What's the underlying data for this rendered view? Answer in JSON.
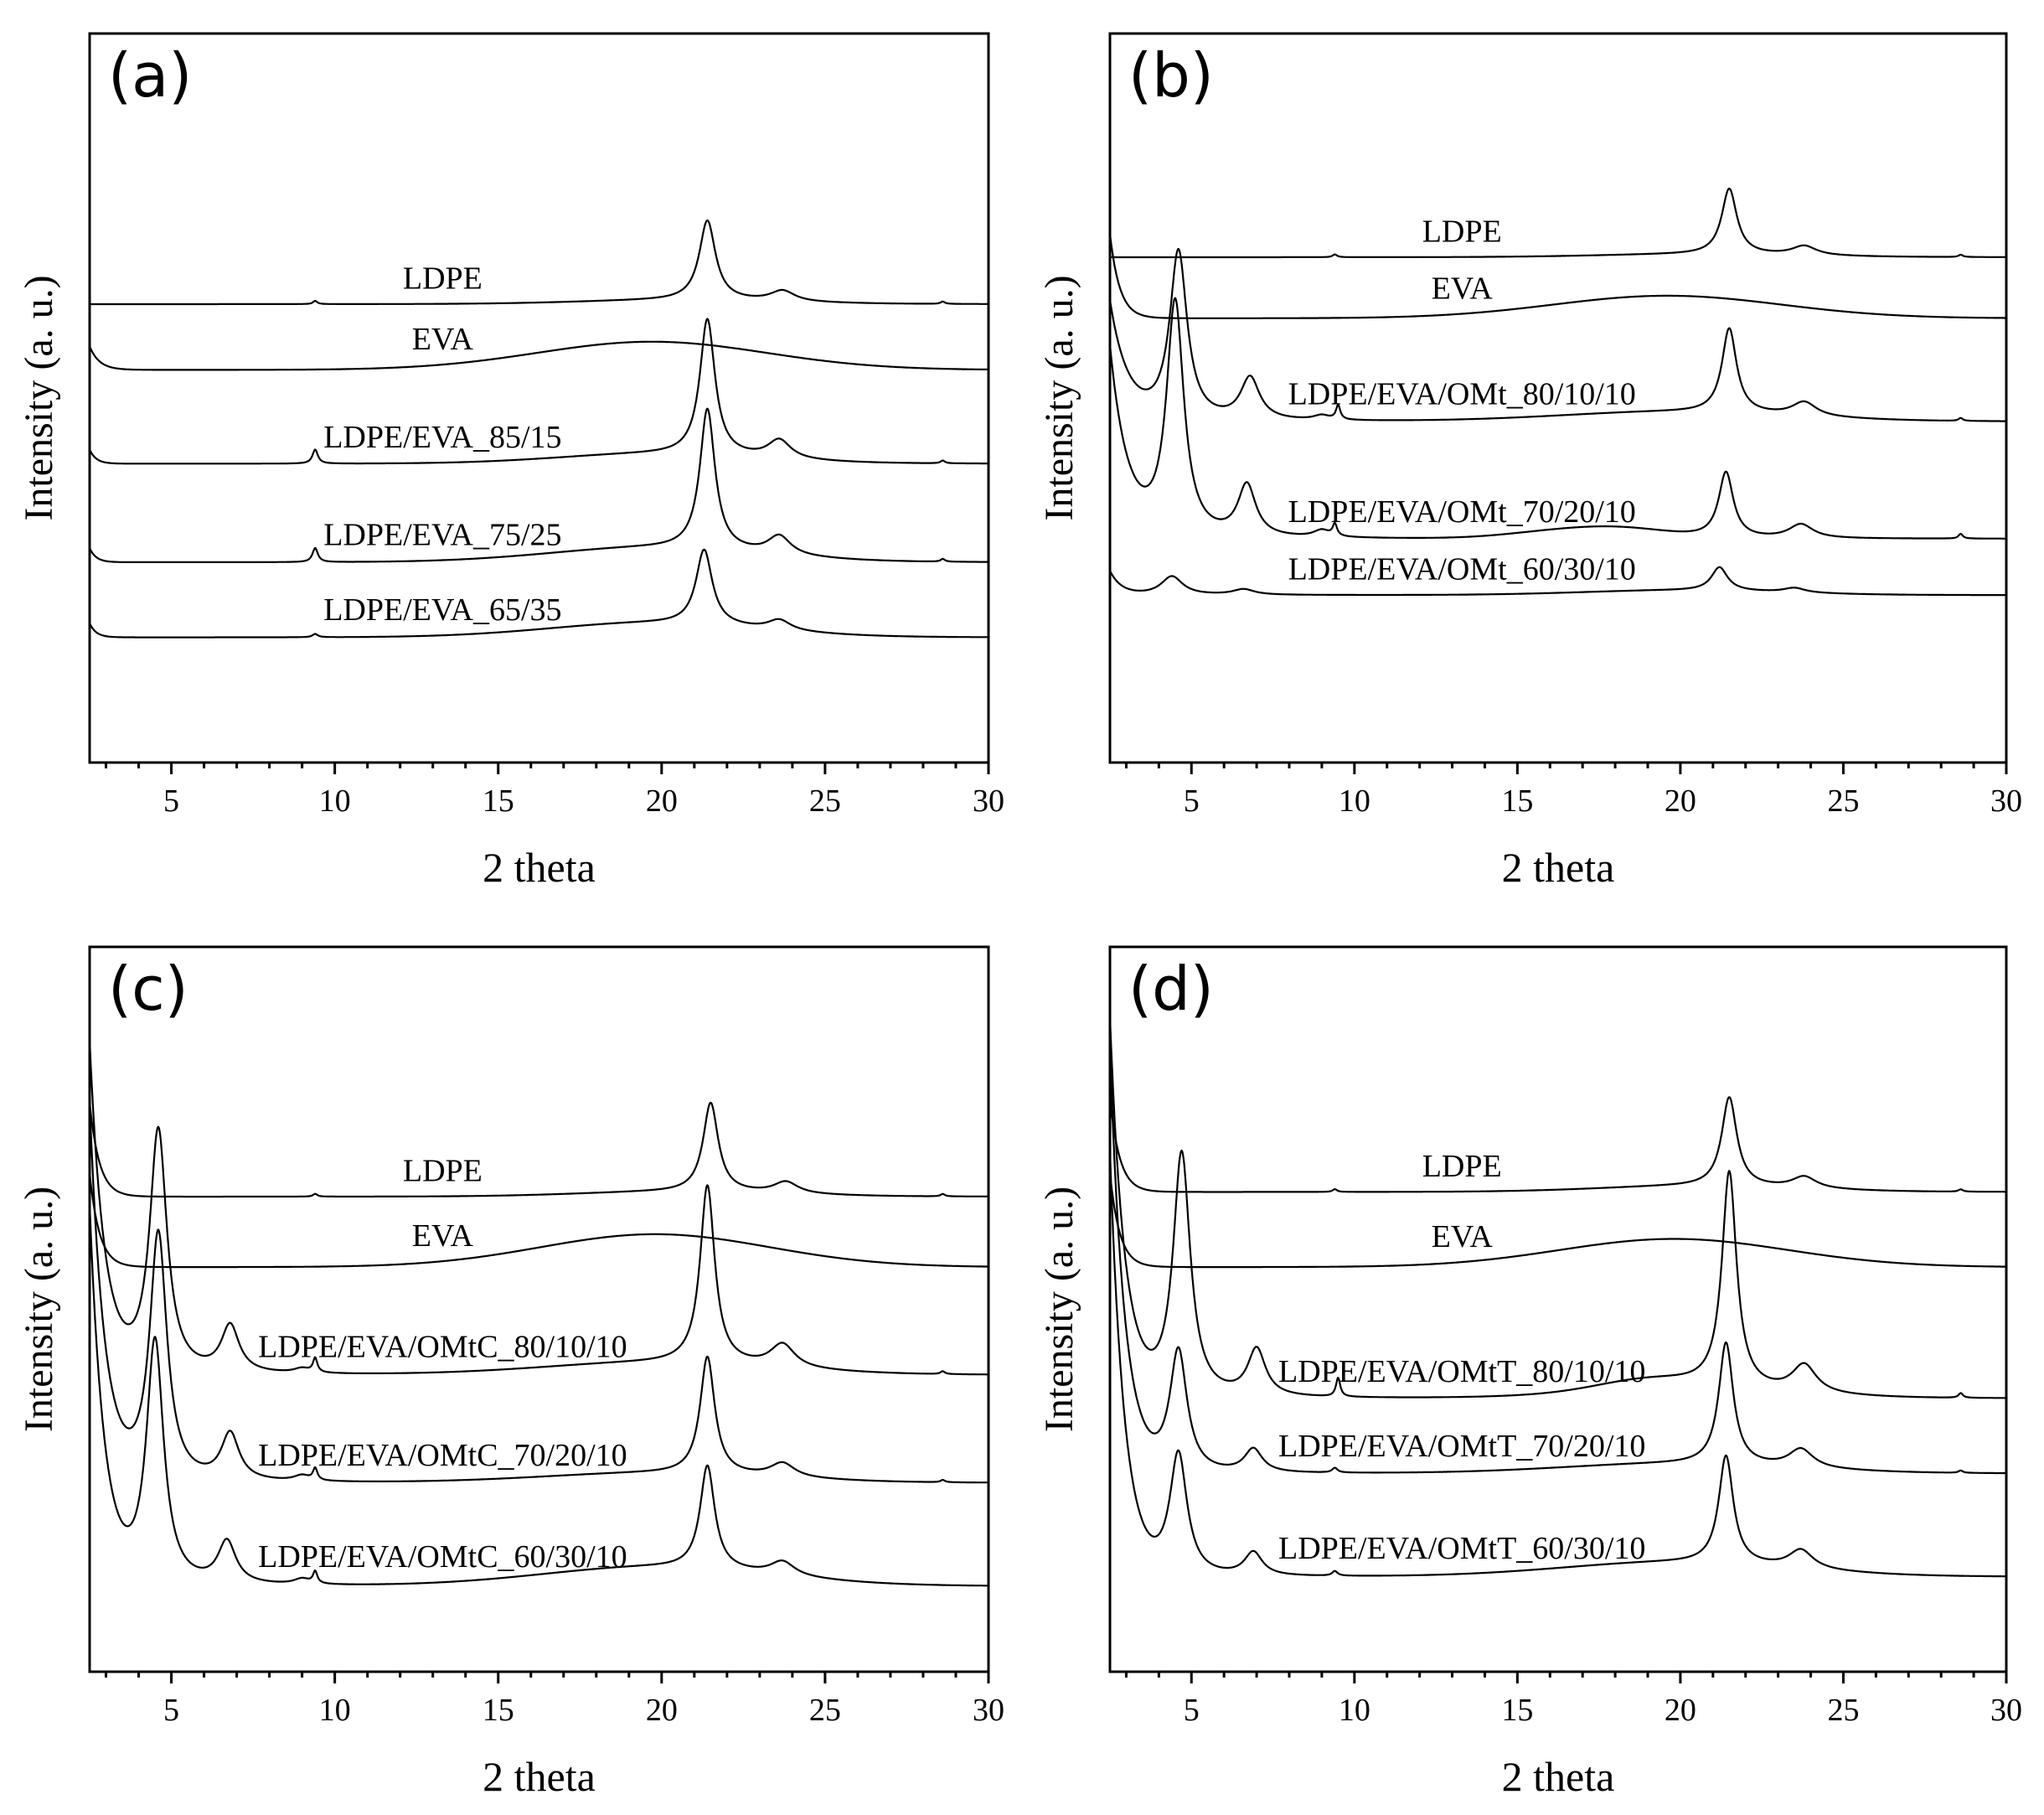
{
  "chart_data": [
    {
      "panel": "(a)",
      "type": "line",
      "xlabel": "2 theta",
      "ylabel": "Intensity (a. u.)",
      "xlim": [
        2.5,
        30
      ],
      "xticks": [
        5,
        10,
        15,
        20,
        25,
        30
      ],
      "series": [
        {
          "name": "LDPE",
          "offset": 0.2,
          "peaks": [
            [
              9.4,
              0.007,
              0.08
            ],
            [
              21.4,
              0.17,
              0.3
            ],
            [
              23.7,
              0.023,
              0.45
            ],
            [
              28.6,
              0.005,
              0.08
            ]
          ],
          "humps": [
            [
              20.5,
              0.008,
              3.0
            ]
          ],
          "lowAngle": [
            0,
            0.3
          ]
        },
        {
          "name": "EVA",
          "offset": 0.06,
          "peaks": [],
          "humps": [
            [
              19.7,
              0.06,
              3.5
            ]
          ],
          "lowAngle": [
            0.05,
            0.3
          ]
        },
        {
          "name": "LDPE/EVA_85/15",
          "offset": -0.14,
          "peaks": [
            [
              9.4,
              0.03,
              0.1
            ],
            [
              21.4,
              0.29,
              0.28
            ],
            [
              23.6,
              0.04,
              0.42
            ],
            [
              28.6,
              0.006,
              0.08
            ]
          ],
          "humps": [
            [
              19.8,
              0.02,
              3.0
            ]
          ],
          "lowAngle": [
            0.03,
            0.2
          ]
        },
        {
          "name": "LDPE/EVA_75/25",
          "offset": -0.35,
          "peaks": [
            [
              9.4,
              0.03,
              0.1
            ],
            [
              21.4,
              0.3,
              0.28
            ],
            [
              23.6,
              0.04,
              0.42
            ],
            [
              28.6,
              0.006,
              0.08
            ]
          ],
          "humps": [
            [
              19.7,
              0.03,
              3.2
            ]
          ],
          "lowAngle": [
            0.03,
            0.2
          ]
        },
        {
          "name": "LDPE/EVA_65/35",
          "offset": -0.51,
          "peaks": [
            [
              9.4,
              0.007,
              0.1
            ],
            [
              21.3,
              0.16,
              0.3
            ],
            [
              23.6,
              0.022,
              0.42
            ]
          ],
          "humps": [
            [
              19.7,
              0.03,
              3.2
            ]
          ],
          "lowAngle": [
            0.03,
            0.2
          ]
        }
      ]
    },
    {
      "panel": "(b)",
      "type": "line",
      "xlabel": "2 theta",
      "ylabel": "Intensity (a. u.)",
      "xlim": [
        2.5,
        30
      ],
      "xticks": [
        5,
        10,
        15,
        20,
        25,
        30
      ],
      "series": [
        {
          "name": "LDPE",
          "offset": 0.3,
          "peaks": [
            [
              9.4,
              0.006,
              0.08
            ],
            [
              21.5,
              0.14,
              0.28
            ],
            [
              23.8,
              0.02,
              0.45
            ],
            [
              28.6,
              0.005,
              0.08
            ]
          ],
          "humps": [
            [
              20.5,
              0.006,
              3.0
            ]
          ],
          "lowAngle": [
            0,
            0.3
          ]
        },
        {
          "name": "EVA",
          "offset": 0.17,
          "peaks": [],
          "humps": [
            [
              19.6,
              0.048,
              3.5
            ]
          ],
          "lowAngle": [
            0.18,
            0.3
          ]
        },
        {
          "name": "LDPE/EVA/OMt_80/10/10",
          "offset": -0.05,
          "peaks": [
            [
              4.6,
              0.36,
              0.32
            ],
            [
              6.8,
              0.09,
              0.35
            ],
            [
              9.0,
              0.01,
              0.3
            ],
            [
              9.5,
              0.03,
              0.08
            ],
            [
              21.5,
              0.18,
              0.27
            ],
            [
              23.8,
              0.03,
              0.45
            ],
            [
              28.6,
              0.006,
              0.08
            ]
          ],
          "humps": [
            [
              19.8,
              0.02,
              3.5
            ]
          ],
          "lowAngle": [
            0.25,
            0.55
          ]
        },
        {
          "name": "LDPE/EVA/OMt_70/20/10",
          "offset": -0.3,
          "peaks": [
            [
              4.5,
              0.5,
              0.32
            ],
            [
              6.7,
              0.11,
              0.33
            ],
            [
              9.0,
              0.015,
              0.3
            ],
            [
              9.4,
              0.025,
              0.08
            ],
            [
              21.4,
              0.14,
              0.27
            ],
            [
              23.7,
              0.03,
              0.45
            ],
            [
              28.6,
              0.01,
              0.08
            ]
          ],
          "humps": [
            [
              16.0,
              0.012,
              1.5
            ],
            [
              18.2,
              0.02,
              1.5
            ]
          ],
          "lowAngle": [
            0.4,
            0.55
          ]
        },
        {
          "name": "LDPE/EVA/OMt_60/30/10",
          "offset": -0.42,
          "peaks": [
            [
              4.4,
              0.04,
              0.4
            ],
            [
              6.6,
              0.012,
              0.4
            ],
            [
              21.2,
              0.05,
              0.3
            ],
            [
              23.5,
              0.01,
              0.4
            ]
          ],
          "humps": [
            [
              20.0,
              0.01,
              3.0
            ]
          ],
          "lowAngle": [
            0.05,
            0.35
          ]
        }
      ]
    },
    {
      "panel": "(c)",
      "type": "line",
      "xlabel": "2 theta",
      "ylabel": "Intensity (a. u.)",
      "xlim": [
        2.5,
        30
      ],
      "xticks": [
        5,
        10,
        15,
        20,
        25,
        30
      ],
      "series": [
        {
          "name": "LDPE",
          "offset": 0.24,
          "peaks": [
            [
              9.4,
              0.006,
              0.08
            ],
            [
              21.5,
              0.19,
              0.28
            ],
            [
              23.8,
              0.025,
              0.45
            ],
            [
              28.6,
              0.005,
              0.08
            ]
          ],
          "humps": [
            [
              20.5,
              0.01,
              3.0
            ]
          ],
          "lowAngle": [
            0.2,
            0.3
          ]
        },
        {
          "name": "EVA",
          "offset": 0.09,
          "peaks": [],
          "humps": [
            [
              19.8,
              0.07,
              3.5
            ]
          ],
          "lowAngle": [
            0.2,
            0.3
          ]
        },
        {
          "name": "LDPE/EVA/OMtC_80/10/10",
          "offset": -0.14,
          "peaks": [
            [
              4.6,
              0.52,
              0.32
            ],
            [
              6.8,
              0.1,
              0.33
            ],
            [
              9.0,
              0.01,
              0.3
            ],
            [
              9.4,
              0.03,
              0.08
            ],
            [
              21.4,
              0.38,
              0.27
            ],
            [
              23.7,
              0.05,
              0.45
            ],
            [
              28.6,
              0.006,
              0.08
            ]
          ],
          "humps": [
            [
              19.8,
              0.025,
              3.5
            ]
          ],
          "lowAngle": [
            0.7,
            0.45
          ]
        },
        {
          "name": "LDPE/EVA/OMtC_70/20/10",
          "offset": -0.37,
          "peaks": [
            [
              4.6,
              0.53,
              0.32
            ],
            [
              6.8,
              0.1,
              0.33
            ],
            [
              9.0,
              0.012,
              0.3
            ],
            [
              9.4,
              0.025,
              0.08
            ],
            [
              21.4,
              0.25,
              0.27
            ],
            [
              23.7,
              0.03,
              0.45
            ],
            [
              28.6,
              0.005,
              0.08
            ]
          ],
          "humps": [
            [
              19.8,
              0.02,
              3.5
            ]
          ],
          "lowAngle": [
            0.8,
            0.45
          ]
        },
        {
          "name": "LDPE/EVA/OMtC_60/30/10",
          "offset": -0.59,
          "peaks": [
            [
              4.5,
              0.52,
              0.32
            ],
            [
              6.7,
              0.09,
              0.33
            ],
            [
              9.0,
              0.012,
              0.3
            ],
            [
              9.4,
              0.025,
              0.08
            ],
            [
              21.4,
              0.22,
              0.27
            ],
            [
              23.7,
              0.03,
              0.45
            ]
          ],
          "humps": [
            [
              19.8,
              0.04,
              3.5
            ]
          ],
          "lowAngle": [
            0.8,
            0.45
          ]
        }
      ]
    },
    {
      "panel": "(d)",
      "type": "line",
      "xlabel": "2 theta",
      "ylabel": "Intensity (a. u.)",
      "xlim": [
        2.5,
        30
      ],
      "xticks": [
        5,
        10,
        15,
        20,
        25,
        30
      ],
      "series": [
        {
          "name": "LDPE",
          "offset": 0.25,
          "peaks": [
            [
              9.4,
              0.006,
              0.08
            ],
            [
              21.5,
              0.19,
              0.28
            ],
            [
              23.8,
              0.025,
              0.45
            ],
            [
              28.6,
              0.005,
              0.08
            ]
          ],
          "humps": [
            [
              20.5,
              0.012,
              3.0
            ]
          ],
          "lowAngle": [
            0.2,
            0.3
          ]
        },
        {
          "name": "EVA",
          "offset": 0.09,
          "peaks": [],
          "humps": [
            [
              19.8,
              0.06,
              3.5
            ]
          ],
          "lowAngle": [
            0.2,
            0.3
          ]
        },
        {
          "name": "LDPE/EVA/OMtT_80/10/10",
          "offset": -0.19,
          "peaks": [
            [
              4.7,
              0.52,
              0.32
            ],
            [
              7.0,
              0.1,
              0.33
            ],
            [
              9.5,
              0.04,
              0.08
            ],
            [
              21.5,
              0.46,
              0.27
            ],
            [
              23.8,
              0.06,
              0.45
            ],
            [
              28.6,
              0.01,
              0.08
            ]
          ],
          "humps": [
            [
              19.0,
              0.02,
              1.5
            ],
            [
              20.0,
              0.02,
              3.0
            ]
          ],
          "lowAngle": [
            0.8,
            0.45
          ]
        },
        {
          "name": "LDPE/EVA/OMtT_70/20/10",
          "offset": -0.35,
          "peaks": [
            [
              4.6,
              0.26,
              0.32
            ],
            [
              6.9,
              0.05,
              0.33
            ],
            [
              9.4,
              0.01,
              0.1
            ],
            [
              21.4,
              0.26,
              0.27
            ],
            [
              23.7,
              0.04,
              0.45
            ],
            [
              28.6,
              0.005,
              0.08
            ]
          ],
          "humps": [
            [
              19.8,
              0.02,
              3.5
            ]
          ],
          "lowAngle": [
            0.9,
            0.45
          ]
        },
        {
          "name": "LDPE/EVA/OMtT_60/30/10",
          "offset": -0.57,
          "peaks": [
            [
              4.6,
              0.26,
              0.32
            ],
            [
              6.9,
              0.05,
              0.33
            ],
            [
              9.4,
              0.01,
              0.1
            ],
            [
              21.4,
              0.23,
              0.27
            ],
            [
              23.7,
              0.04,
              0.45
            ]
          ],
          "humps": [
            [
              19.8,
              0.03,
              3.5
            ]
          ],
          "lowAngle": [
            0.9,
            0.45
          ]
        }
      ]
    }
  ]
}
